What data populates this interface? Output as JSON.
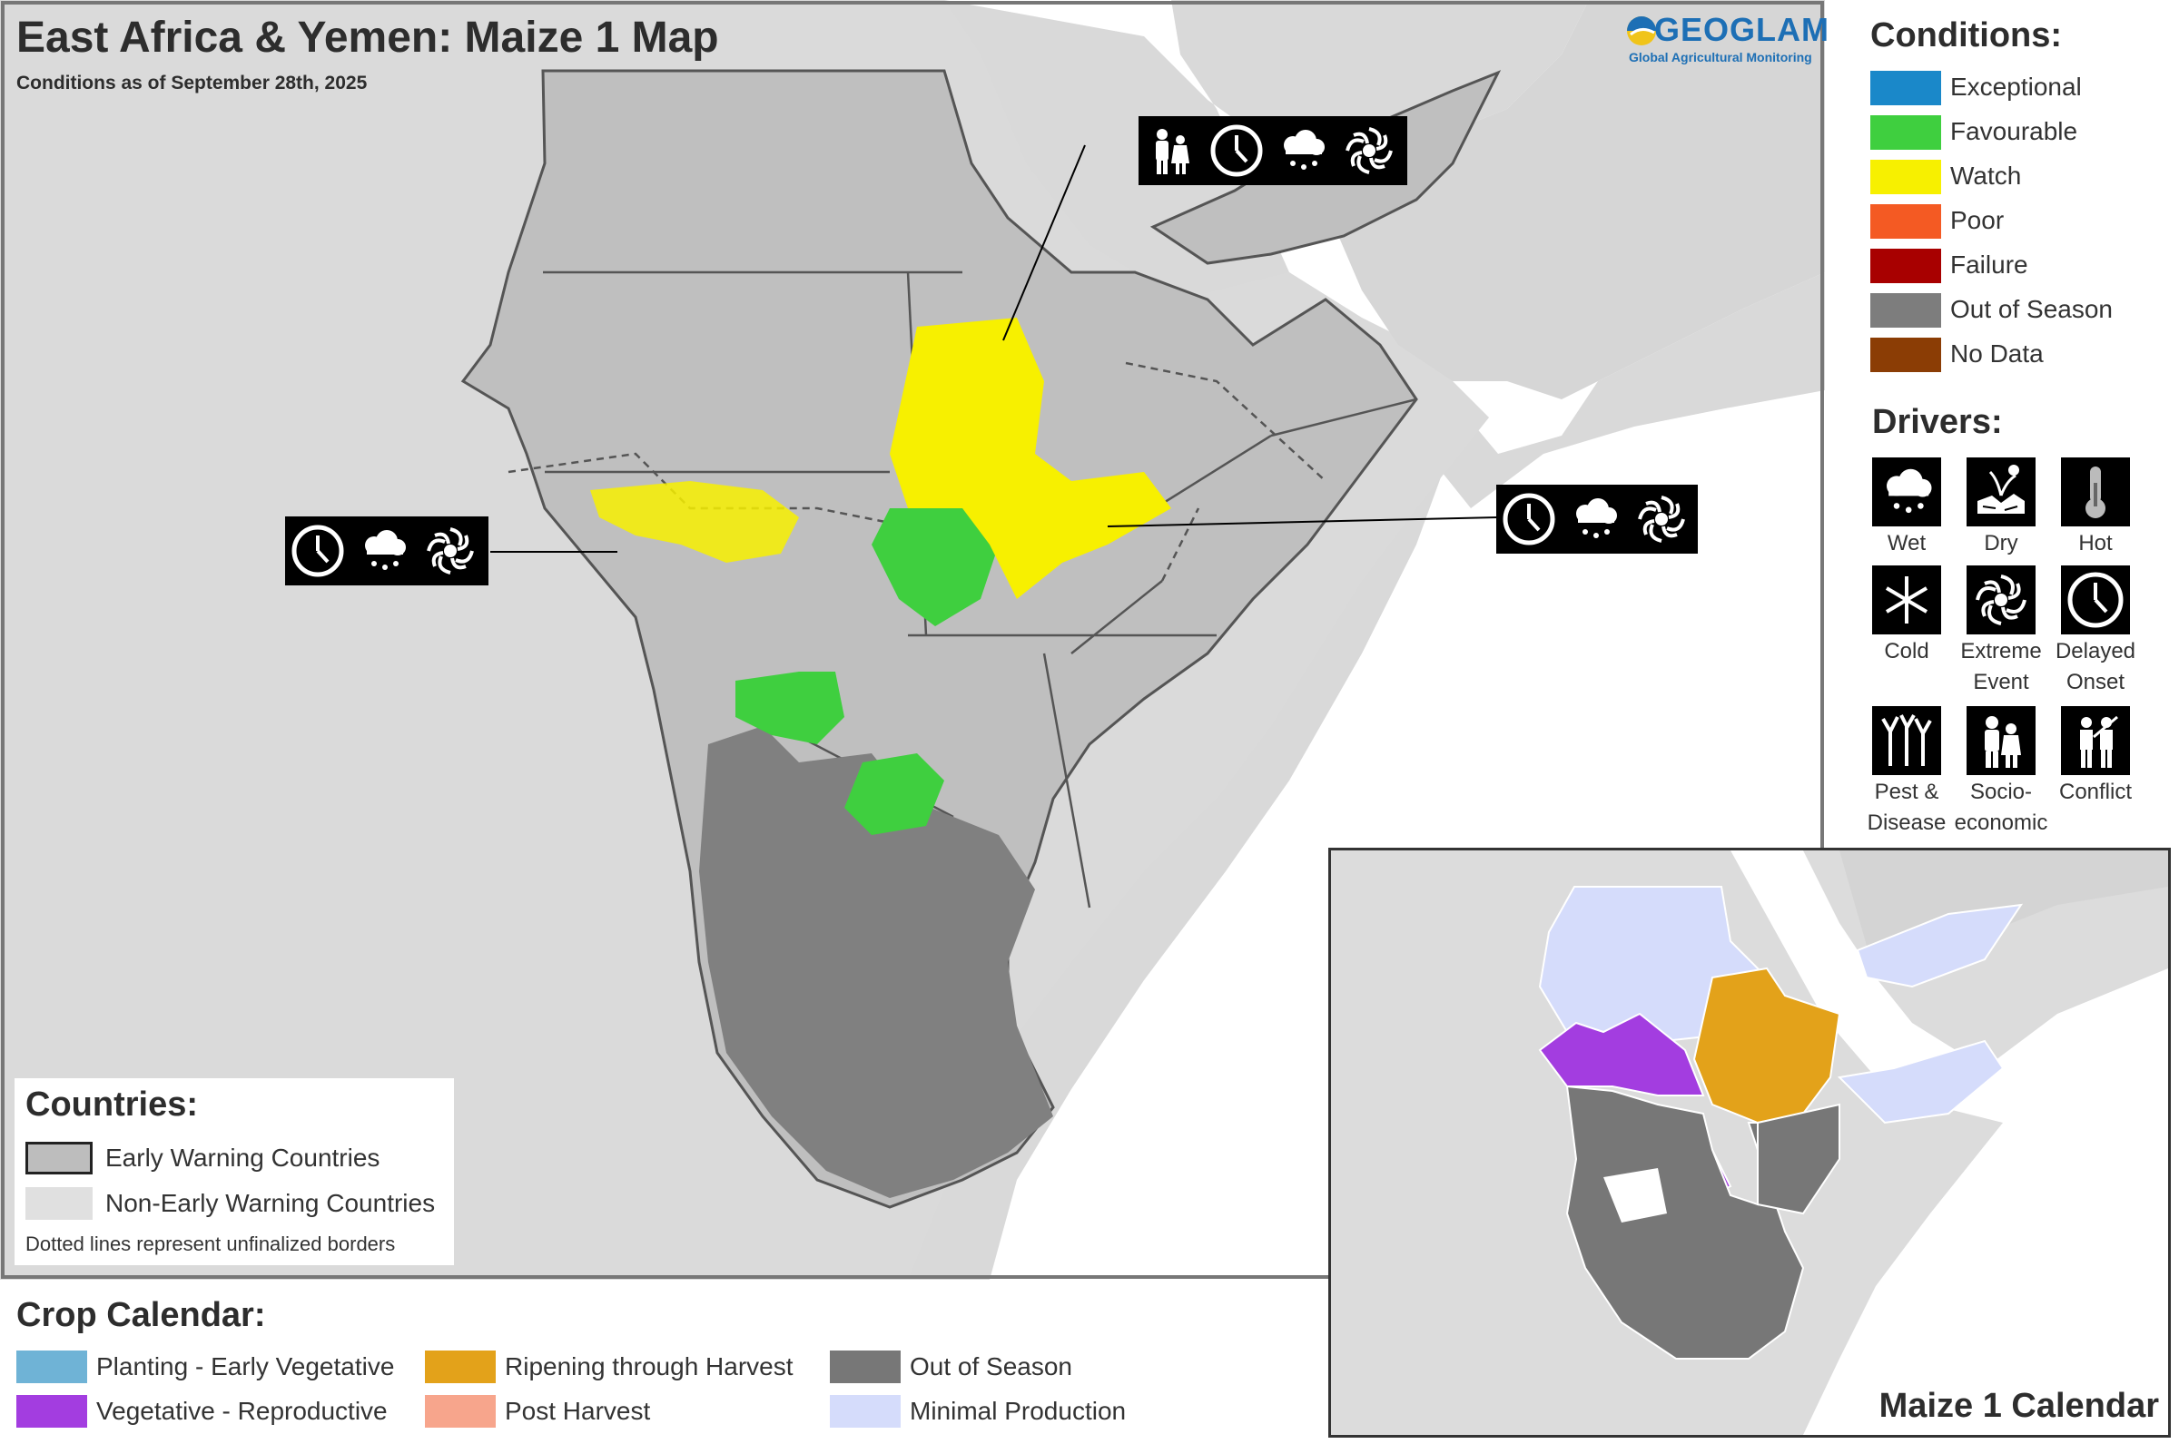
{
  "map": {
    "title": "East Africa & Yemen: Maize 1 Map",
    "subtitle": "Conditions as of September 28th, 2025",
    "logo": {
      "brand": "GEOGLAM",
      "tagline": "Global Agricultural Monitoring"
    }
  },
  "conditions": {
    "title": "Conditions:",
    "items": [
      {
        "label": "Exceptional",
        "color": "#1a88c9"
      },
      {
        "label": "Favourable",
        "color": "#3fcf3f"
      },
      {
        "label": "Watch",
        "color": "#f7f000"
      },
      {
        "label": "Poor",
        "color": "#f45a23"
      },
      {
        "label": "Failure",
        "color": "#a80000"
      },
      {
        "label": "Out of Season",
        "color": "#7d7d7d"
      },
      {
        "label": "No Data",
        "color": "#8b3d05"
      }
    ]
  },
  "drivers": {
    "title": "Drivers:",
    "items": [
      {
        "label": "Wet",
        "icon": "wet-icon"
      },
      {
        "label": "Dry",
        "icon": "dry-icon"
      },
      {
        "label": "Hot",
        "icon": "hot-icon"
      },
      {
        "label": "Cold",
        "icon": "cold-icon"
      },
      {
        "label": "Extreme Event",
        "line1": "Extreme",
        "line2": "Event",
        "icon": "extreme-event-icon"
      },
      {
        "label": "Delayed Onset",
        "line1": "Delayed",
        "line2": "Onset",
        "icon": "delayed-onset-icon"
      },
      {
        "label": "Pest & Disease",
        "line1": "Pest &",
        "line2": "Disease",
        "icon": "pest-disease-icon"
      },
      {
        "label": "Socio-economic",
        "line1": "Socio-",
        "line2": "economic",
        "icon": "socio-economic-icon"
      },
      {
        "label": "Conflict",
        "icon": "conflict-icon"
      }
    ]
  },
  "countries": {
    "title": "Countries:",
    "items": [
      {
        "label": "Early Warning Countries",
        "color": "#bdbdbd"
      },
      {
        "label": "Non-Early Warning Countries",
        "color": "#e0e0e0"
      }
    ],
    "note": "Dotted lines represent unfinalized borders"
  },
  "crop_calendar": {
    "title": "Crop Calendar:",
    "items": [
      {
        "label": "Planting - Early Vegetative",
        "color": "#6fb3d6"
      },
      {
        "label": "Vegetative - Reproductive",
        "color": "#a33de0"
      },
      {
        "label": "Ripening through Harvest",
        "color": "#e3a21a"
      },
      {
        "label": "Post Harvest",
        "color": "#f7a58c"
      },
      {
        "label": "Out of Season",
        "color": "#777777"
      },
      {
        "label": "Minimal Production",
        "color": "#d5dcfb"
      }
    ]
  },
  "inset": {
    "title": "Maize 1 Calendar"
  },
  "callouts": [
    {
      "location": "north Ethiopia / Eritrea",
      "drivers": [
        "Socio-economic",
        "Delayed Onset",
        "Wet",
        "Extreme Event"
      ]
    },
    {
      "location": "east Ethiopia",
      "drivers": [
        "Delayed Onset",
        "Wet",
        "Extreme Event"
      ]
    },
    {
      "location": "South Sudan",
      "drivers": [
        "Delayed Onset",
        "Wet",
        "Extreme Event"
      ]
    }
  ]
}
